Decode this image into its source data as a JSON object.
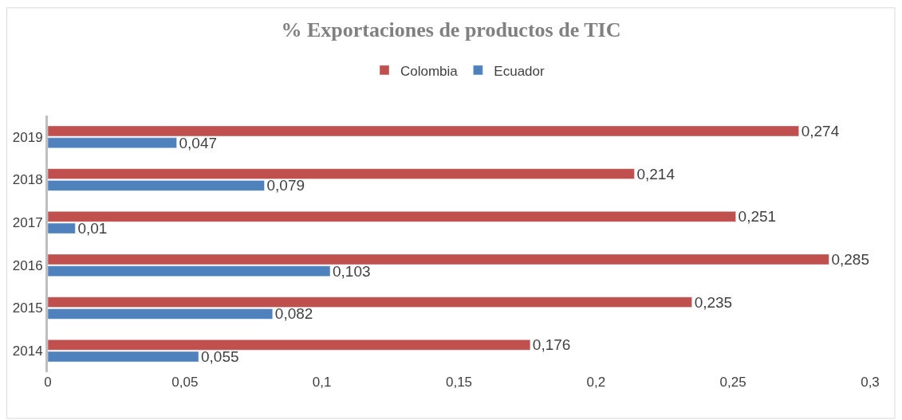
{
  "chart_data": {
    "type": "bar",
    "orientation": "horizontal",
    "title": "% Exportaciones de productos de TIC",
    "categories": [
      "2019",
      "2018",
      "2017",
      "2016",
      "2015",
      "2014"
    ],
    "series": [
      {
        "name": "Colombia",
        "color": "#c0504d",
        "values": [
          0.274,
          0.214,
          0.251,
          0.285,
          0.235,
          0.176
        ],
        "value_labels": [
          "0,274",
          "0,214",
          "0,251",
          "0,285",
          "0,235",
          "0,176"
        ]
      },
      {
        "name": "Ecuador",
        "color": "#4f81bd",
        "values": [
          0.047,
          0.079,
          0.01,
          0.103,
          0.082,
          0.055
        ],
        "value_labels": [
          "0,047",
          "0,079",
          "0,01",
          "0,103",
          "0,082",
          "0,055"
        ]
      }
    ],
    "xlim": [
      0,
      0.3
    ],
    "xticks": [
      0,
      {
        "value": 0.05,
        "label": "0,05"
      },
      {
        "value": 0.1,
        "label": "0,1"
      },
      {
        "value": 0.15,
        "label": "0,15"
      },
      {
        "value": 0.2,
        "label": "0,2"
      },
      {
        "value": 0.25,
        "label": "0,25"
      },
      {
        "value": 0.3,
        "label": "0,3"
      }
    ],
    "legend": "top"
  }
}
